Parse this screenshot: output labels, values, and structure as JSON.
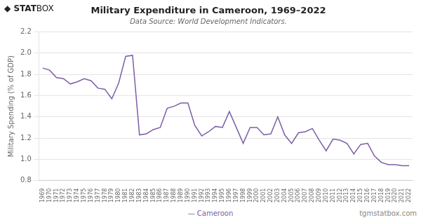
{
  "chart_data": {
    "type": "line",
    "title": "Military Expenditure in Cameroon, 1969–2022",
    "subtitle": "Data Source: World Development Indicators.",
    "y_label": "Military Spending (% of GDP)",
    "annotations": [
      "◆",
      "STAT",
      "BOX",
      "— Cameroon",
      "tgmstatbox.com"
    ],
    "color": "#7b5ea7",
    "x": [
      1969,
      1970,
      1971,
      1972,
      1973,
      1974,
      1975,
      1976,
      1977,
      1978,
      1979,
      1980,
      1981,
      1982,
      1983,
      1984,
      1985,
      1986,
      1987,
      1988,
      1989,
      1990,
      1991,
      1992,
      1993,
      1994,
      1995,
      1996,
      1997,
      1998,
      1999,
      2000,
      2001,
      2002,
      2003,
      2004,
      2005,
      2006,
      2007,
      2008,
      2009,
      2010,
      2011,
      2012,
      2013,
      2014,
      2015,
      2016,
      2017,
      2018,
      2019,
      2020,
      2021,
      2022
    ],
    "values": [
      1.86,
      1.84,
      1.77,
      1.76,
      1.71,
      1.73,
      1.76,
      1.74,
      1.67,
      1.66,
      1.57,
      1.72,
      1.97,
      1.98,
      1.23,
      1.24,
      1.28,
      1.3,
      1.48,
      1.5,
      1.53,
      1.53,
      1.32,
      1.22,
      1.26,
      1.31,
      1.3,
      1.45,
      1.3,
      1.15,
      1.3,
      1.3,
      1.23,
      1.24,
      1.4,
      1.23,
      1.15,
      1.25,
      1.26,
      1.29,
      1.18,
      1.08,
      1.19,
      1.18,
      1.15,
      1.05,
      1.14,
      1.15,
      1.03,
      0.97,
      0.95,
      0.95,
      0.94,
      0.94
    ],
    "xlim": [
      1968.5,
      2022.5
    ],
    "xticks": [
      1969,
      1970,
      1971,
      1972,
      1973,
      1974,
      1975,
      1976,
      1977,
      1978,
      1979,
      1980,
      1981,
      1982,
      1983,
      1984,
      1985,
      1986,
      1987,
      1988,
      1989,
      1990,
      1991,
      1992,
      1993,
      1994,
      1995,
      1996,
      1997,
      1998,
      1999,
      2000,
      2001,
      2002,
      2003,
      2004,
      2005,
      2006,
      2007,
      2008,
      2009,
      2010,
      2011,
      2012,
      2013,
      2014,
      2015,
      2016,
      2017,
      2018,
      2019,
      2020,
      2021,
      2022
    ],
    "ylim": [
      0.8,
      2.2
    ],
    "yticks": [
      0.8,
      {
        "value": 1.0,
        "label": "1.0"
      },
      1.2,
      1.4,
      1.6,
      1.8,
      {
        "value": 2.0,
        "label": "2.0"
      },
      2.2
    ],
    "grid": true
  }
}
